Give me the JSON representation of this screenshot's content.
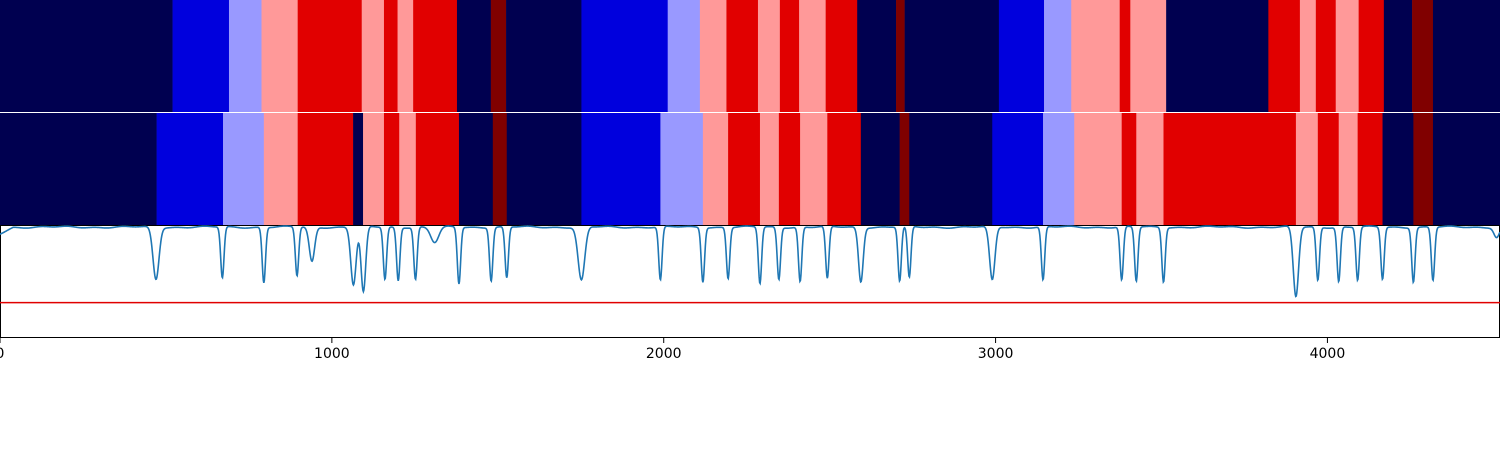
{
  "chart_data": {
    "type": "heatmap",
    "title": "",
    "xlabel": "",
    "ylabel": "",
    "xlim": [
      0,
      4520
    ],
    "x_ticks": [
      0,
      1000,
      2000,
      3000,
      4000
    ],
    "x_tick_labels": [
      "0",
      "1000",
      "2000",
      "3000",
      "4000"
    ],
    "colors": {
      "navy": "#000050",
      "blue": "#0000dd",
      "lightblue": "#9999ff",
      "pink": "#ff9999",
      "red": "#e10000",
      "darkred": "#800000"
    },
    "tracks": [
      {
        "segments": [
          [
            0,
            520,
            "navy"
          ],
          [
            520,
            690,
            "blue"
          ],
          [
            690,
            788,
            "lightblue"
          ],
          [
            788,
            897,
            "pink"
          ],
          [
            897,
            1090,
            "red"
          ],
          [
            1090,
            1157,
            "pink"
          ],
          [
            1157,
            1198,
            "red"
          ],
          [
            1198,
            1245,
            "pink"
          ],
          [
            1245,
            1377,
            "red"
          ],
          [
            1377,
            1479,
            "navy"
          ],
          [
            1479,
            1525,
            "darkred"
          ],
          [
            1525,
            1752,
            "navy"
          ],
          [
            1752,
            2012,
            "blue"
          ],
          [
            2012,
            2109,
            "lightblue"
          ],
          [
            2109,
            2189,
            "pink"
          ],
          [
            2189,
            2284,
            "red"
          ],
          [
            2284,
            2350,
            "pink"
          ],
          [
            2350,
            2408,
            "red"
          ],
          [
            2408,
            2488,
            "pink"
          ],
          [
            2488,
            2583,
            "red"
          ],
          [
            2583,
            2700,
            "navy"
          ],
          [
            2700,
            2726,
            "darkred"
          ],
          [
            2726,
            3010,
            "navy"
          ],
          [
            3010,
            3146,
            "blue"
          ],
          [
            3146,
            3228,
            "lightblue"
          ],
          [
            3228,
            3374,
            "pink"
          ],
          [
            3374,
            3406,
            "red"
          ],
          [
            3406,
            3514,
            "pink"
          ],
          [
            3514,
            3822,
            "navy"
          ],
          [
            3822,
            3917,
            "red"
          ],
          [
            3917,
            3965,
            "pink"
          ],
          [
            3965,
            4025,
            "red"
          ],
          [
            4025,
            4094,
            "pink"
          ],
          [
            4094,
            4170,
            "red"
          ],
          [
            4170,
            4255,
            "navy"
          ],
          [
            4255,
            4318,
            "darkred"
          ],
          [
            4318,
            4520,
            "navy"
          ]
        ]
      },
      {
        "segments": [
          [
            0,
            472,
            "navy"
          ],
          [
            472,
            672,
            "blue"
          ],
          [
            672,
            795,
            "lightblue"
          ],
          [
            795,
            897,
            "pink"
          ],
          [
            897,
            1064,
            "red"
          ],
          [
            1064,
            1094,
            "navy"
          ],
          [
            1094,
            1157,
            "pink"
          ],
          [
            1157,
            1203,
            "red"
          ],
          [
            1203,
            1253,
            "pink"
          ],
          [
            1253,
            1383,
            "red"
          ],
          [
            1383,
            1485,
            "navy"
          ],
          [
            1485,
            1527,
            "darkred"
          ],
          [
            1527,
            1752,
            "navy"
          ],
          [
            1752,
            1990,
            "blue"
          ],
          [
            1990,
            2118,
            "lightblue"
          ],
          [
            2118,
            2194,
            "pink"
          ],
          [
            2194,
            2290,
            "red"
          ],
          [
            2290,
            2347,
            "pink"
          ],
          [
            2347,
            2411,
            "red"
          ],
          [
            2411,
            2493,
            "pink"
          ],
          [
            2493,
            2594,
            "red"
          ],
          [
            2594,
            2711,
            "navy"
          ],
          [
            2711,
            2740,
            "darkred"
          ],
          [
            2740,
            2990,
            "navy"
          ],
          [
            2990,
            3143,
            "blue"
          ],
          [
            3143,
            3237,
            "lightblue"
          ],
          [
            3237,
            3380,
            "pink"
          ],
          [
            3380,
            3424,
            "red"
          ],
          [
            3424,
            3506,
            "pink"
          ],
          [
            3506,
            3905,
            "red"
          ],
          [
            3905,
            3971,
            "pink"
          ],
          [
            3971,
            4034,
            "red"
          ],
          [
            4034,
            4091,
            "pink"
          ],
          [
            4091,
            4166,
            "red"
          ],
          [
            4166,
            4259,
            "navy"
          ],
          [
            4259,
            4318,
            "darkred"
          ],
          [
            4318,
            4520,
            "navy"
          ]
        ]
      }
    ],
    "line_panel": {
      "ylim": [
        0,
        1
      ],
      "baseline": 0.99,
      "threshold": 0.31,
      "line_color": "#1f77b4",
      "threshold_color": "#e00000",
      "dips": [
        [
          470,
          0.52,
          9
        ],
        [
          670,
          0.53,
          5
        ],
        [
          795,
          0.49,
          5
        ],
        [
          895,
          0.55,
          5
        ],
        [
          940,
          0.68,
          8
        ],
        [
          1065,
          0.47,
          8
        ],
        [
          1095,
          0.4,
          7
        ],
        [
          1160,
          0.52,
          5
        ],
        [
          1200,
          0.51,
          5
        ],
        [
          1252,
          0.52,
          5
        ],
        [
          1310,
          0.85,
          12
        ],
        [
          1383,
          0.48,
          5
        ],
        [
          1480,
          0.51,
          5
        ],
        [
          1527,
          0.53,
          5
        ],
        [
          1752,
          0.51,
          10
        ],
        [
          1990,
          0.51,
          5
        ],
        [
          2118,
          0.5,
          5
        ],
        [
          2194,
          0.53,
          5
        ],
        [
          2290,
          0.48,
          5
        ],
        [
          2347,
          0.52,
          5
        ],
        [
          2411,
          0.5,
          5
        ],
        [
          2493,
          0.52,
          5
        ],
        [
          2594,
          0.5,
          7
        ],
        [
          2711,
          0.5,
          5
        ],
        [
          2740,
          0.53,
          5
        ],
        [
          2990,
          0.51,
          8
        ],
        [
          3143,
          0.51,
          5
        ],
        [
          3380,
          0.51,
          5
        ],
        [
          3424,
          0.5,
          5
        ],
        [
          3506,
          0.5,
          5
        ],
        [
          3905,
          0.36,
          8
        ],
        [
          3971,
          0.51,
          5
        ],
        [
          4034,
          0.5,
          5
        ],
        [
          4091,
          0.51,
          5
        ],
        [
          4166,
          0.52,
          5
        ],
        [
          4259,
          0.5,
          5
        ],
        [
          4318,
          0.51,
          5
        ],
        [
          4510,
          0.9,
          8
        ]
      ]
    }
  }
}
